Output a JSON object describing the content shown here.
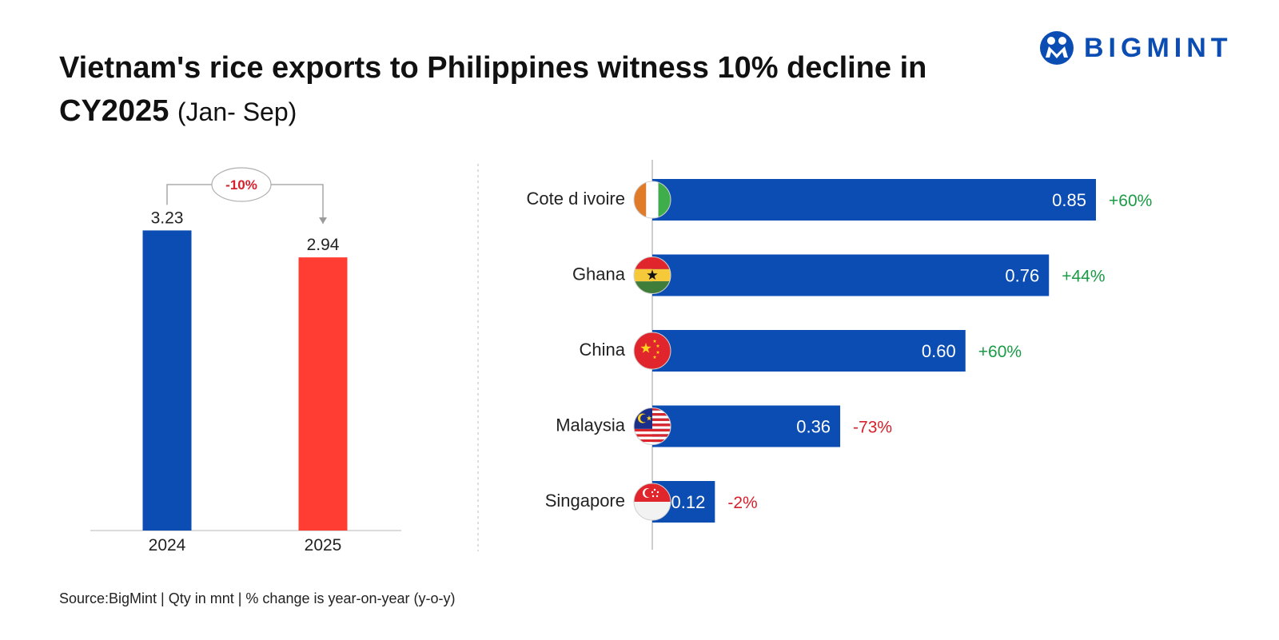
{
  "title": {
    "main": "Vietnam's rice exports to Philippines witness 10% decline in CY2025",
    "sub": "(Jan- Sep)"
  },
  "logo": {
    "text": "BIGMINT"
  },
  "source": "Source:BigMint | Qty in mnt | % change is year-on-year (y-o-y)",
  "colors": {
    "blue": "#0b4db3",
    "red": "#ff3d33",
    "positive": "#1a9b45",
    "negative": "#d7202b"
  },
  "chart_data": [
    {
      "type": "bar",
      "title": "",
      "categories": [
        "2024",
        "2025"
      ],
      "values": [
        3.23,
        2.94
      ],
      "value_labels": [
        "3.23",
        "2.94"
      ],
      "change_label": "-10%",
      "ylim": [
        0,
        3.5
      ],
      "xlabel": "",
      "ylabel": ""
    },
    {
      "type": "bar",
      "orientation": "horizontal",
      "title": "",
      "categories": [
        "Cote d ivoire",
        "Ghana",
        "China",
        "Malaysia",
        "Singapore"
      ],
      "values": [
        0.85,
        0.76,
        0.6,
        0.36,
        0.12
      ],
      "value_labels": [
        "0.85",
        "0.76",
        "0.60",
        "0.36",
        "0.12"
      ],
      "changes": [
        "+60%",
        "+44%",
        "+60%",
        "-73%",
        "-2%"
      ],
      "flags": [
        "cote-divoire-flag-icon",
        "ghana-flag-icon",
        "china-flag-icon",
        "malaysia-flag-icon",
        "singapore-flag-icon"
      ],
      "xlim": [
        0,
        0.85
      ]
    }
  ]
}
